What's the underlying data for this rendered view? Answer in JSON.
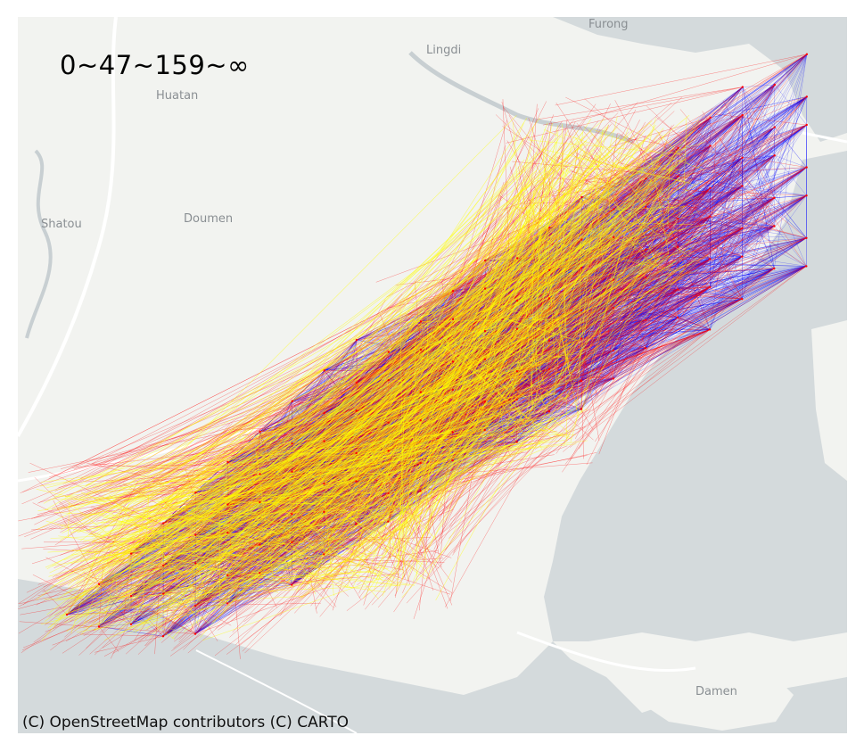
{
  "legend": {
    "title": "0~47~159~∞"
  },
  "attribution": "(C) OpenStreetMap contributors (C) CARTO",
  "places": {
    "furong": "Furong",
    "lingdi": "Lingdi",
    "huatan": "Huatan",
    "shatou": "Shatou",
    "doumen": "Doumen",
    "damen": "Damen"
  },
  "flow_classes": {
    "low": {
      "range": "0~47",
      "color": "#0000ff"
    },
    "mid": {
      "range": "47~159",
      "color": "#ff0000"
    },
    "high": {
      "range": "159~∞",
      "color": "#ffff00"
    }
  },
  "colors": {
    "land": "#f2f3f0",
    "water": "#d4dadc",
    "roads": "#ffffff",
    "river": "#c8cfd2"
  }
}
